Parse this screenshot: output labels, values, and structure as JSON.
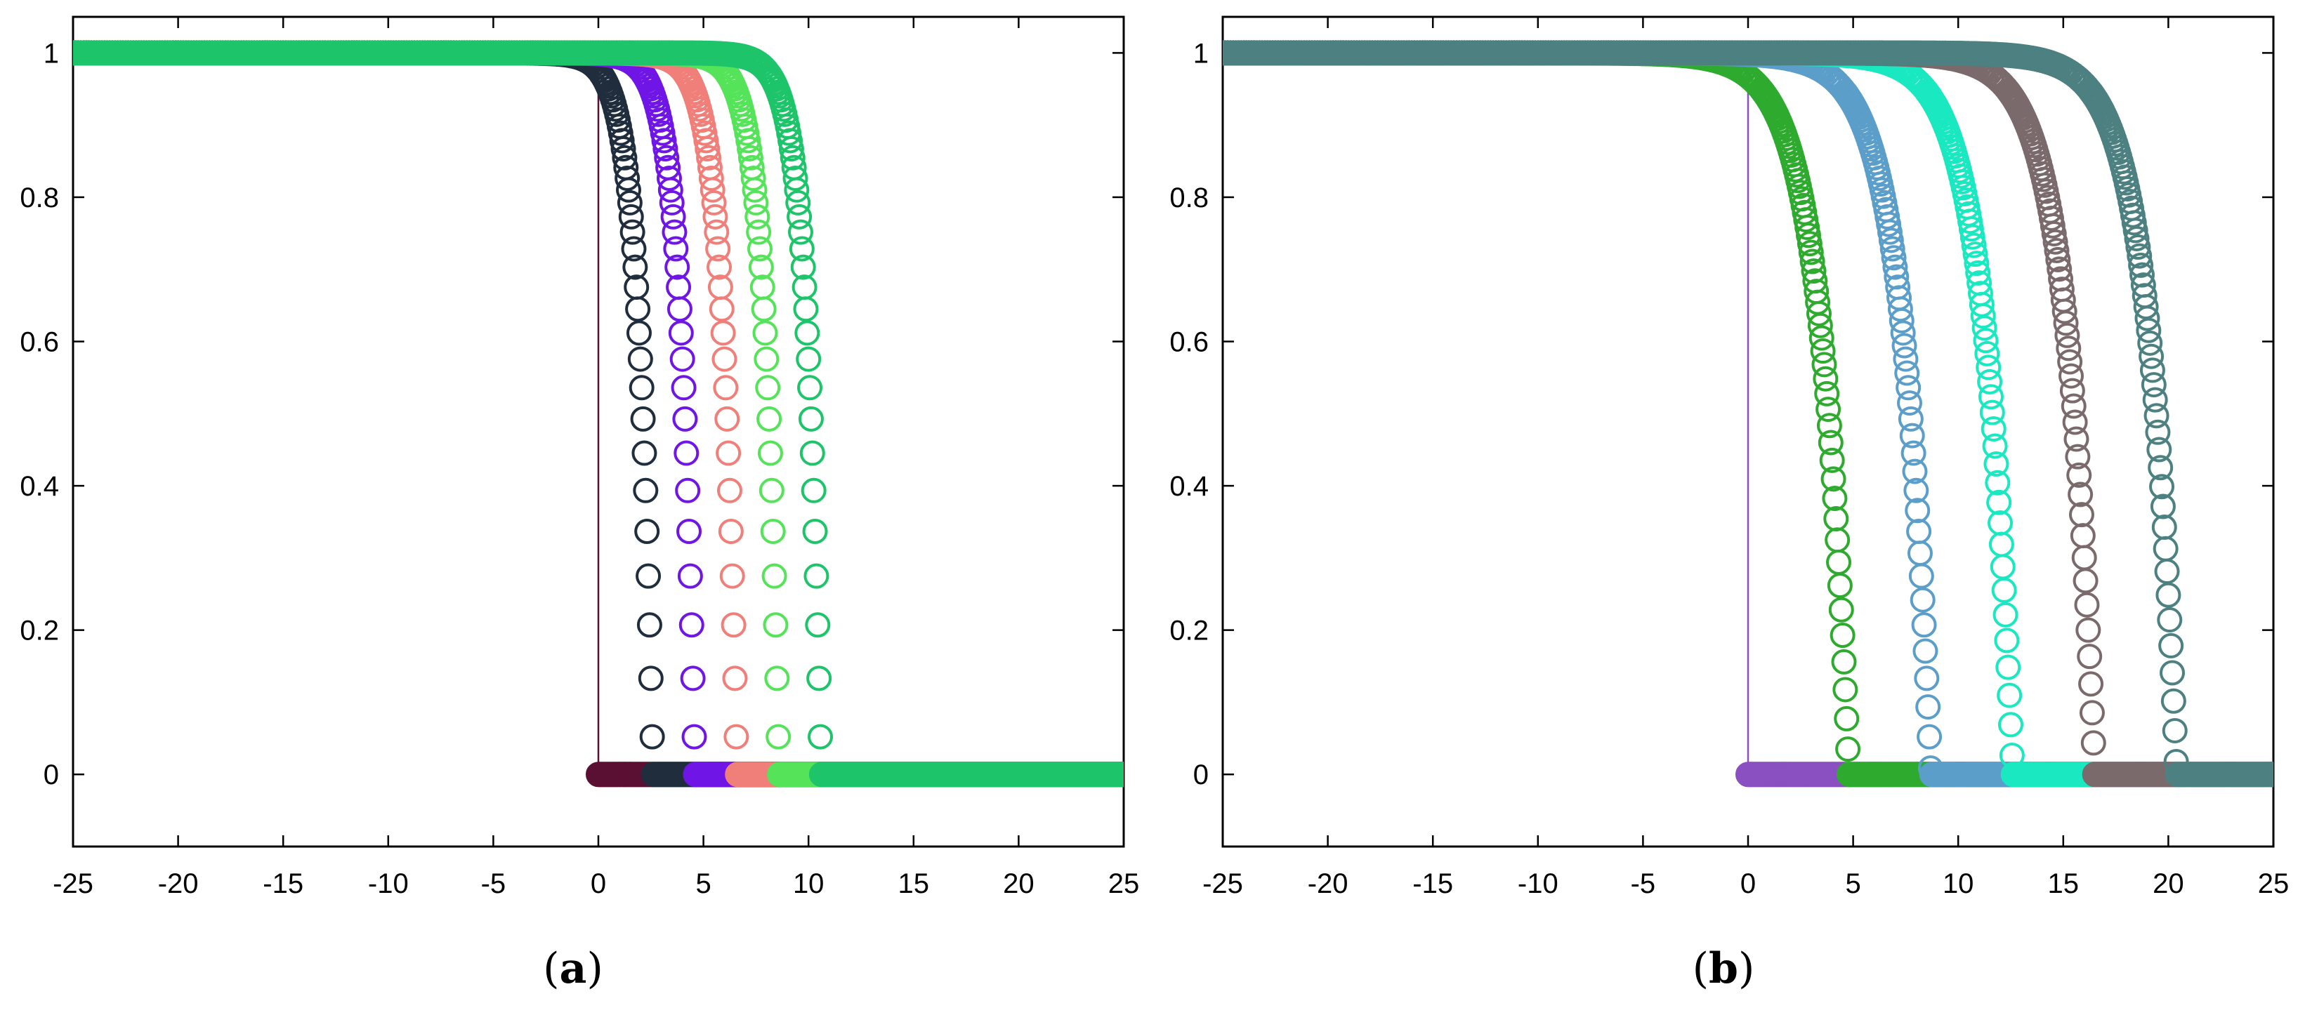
{
  "chart_data": [
    {
      "type": "scatter",
      "panel_label": "a",
      "xlim": [
        -25,
        25
      ],
      "ylim": [
        -0.1,
        1.05
      ],
      "xticks": [
        -25,
        -20,
        -15,
        -10,
        -5,
        0,
        5,
        10,
        15,
        20,
        25
      ],
      "yticks": [
        0,
        0.2,
        0.4,
        0.6,
        0.8,
        1
      ],
      "xtick_labels": [
        "-25",
        "-20",
        "-15",
        "-10",
        "-5",
        "0",
        "5",
        "10",
        "15",
        "20",
        "25"
      ],
      "ytick_labels": [
        "0",
        "0.2",
        "0.4",
        "0.6",
        "0.8",
        "1"
      ],
      "grid": false,
      "reference_line": {
        "x": 0,
        "y_range": [
          0,
          1
        ],
        "color": "#5a1032"
      },
      "series": [
        {
          "color": "#5a1032",
          "step_x": 0.0,
          "width": 0.0
        },
        {
          "color": "#1f2d3d",
          "step_x": 2.6,
          "width": 0.7
        },
        {
          "color": "#6f16e6",
          "step_x": 4.6,
          "width": 0.7
        },
        {
          "color": "#f07f7a",
          "step_x": 6.6,
          "width": 0.7
        },
        {
          "color": "#55e35a",
          "step_x": 8.6,
          "width": 0.7
        },
        {
          "color": "#1ec46a",
          "step_x": 10.6,
          "width": 0.7
        }
      ]
    },
    {
      "type": "scatter",
      "panel_label": "b",
      "xlim": [
        -25,
        25
      ],
      "ylim": [
        -0.1,
        1.05
      ],
      "xticks": [
        -25,
        -20,
        -15,
        -10,
        -5,
        0,
        5,
        10,
        15,
        20,
        25
      ],
      "yticks": [
        0,
        0.2,
        0.4,
        0.6,
        0.8,
        1
      ],
      "xtick_labels": [
        "-25",
        "-20",
        "-15",
        "-10",
        "-5",
        "0",
        "5",
        "10",
        "15",
        "20",
        "25"
      ],
      "ytick_labels": [
        "0",
        "0.2",
        "0.4",
        "0.6",
        "0.8",
        "1"
      ],
      "grid": false,
      "reference_line": {
        "x": 0,
        "y_range": [
          0,
          1
        ],
        "color": "#8a4fc0"
      },
      "series": [
        {
          "color": "#8a4fc0",
          "step_x": 0.0,
          "width": 0.0
        },
        {
          "color": "#2eaa2e",
          "step_x": 4.8,
          "width": 1.4
        },
        {
          "color": "#5b9ec9",
          "step_x": 8.7,
          "width": 1.4
        },
        {
          "color": "#19e8c0",
          "step_x": 12.6,
          "width": 1.4
        },
        {
          "color": "#7a6a6c",
          "step_x": 16.5,
          "width": 1.4
        },
        {
          "color": "#4d8080",
          "step_x": 20.4,
          "width": 1.4
        }
      ]
    }
  ]
}
